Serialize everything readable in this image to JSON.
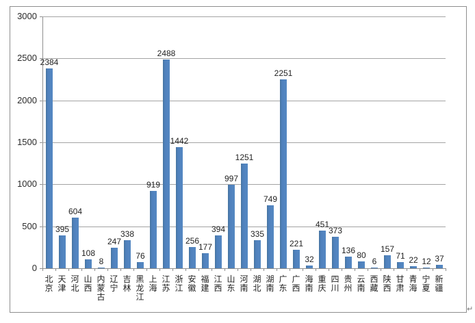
{
  "chart_data": {
    "type": "bar",
    "title": "",
    "xlabel": "",
    "ylabel": "",
    "categories": [
      "北京",
      "天津",
      "河北",
      "山西",
      "内蒙古",
      "辽宁",
      "吉林",
      "黑龙江",
      "上海",
      "江苏",
      "浙江",
      "安徽",
      "福建",
      "江西",
      "山东",
      "河南",
      "湖北",
      "湖南",
      "广东",
      "广西",
      "海南",
      "重庆",
      "四川",
      "贵州",
      "云南",
      "西藏",
      "陕西",
      "甘肃",
      "青海",
      "宁夏",
      "新疆"
    ],
    "values": [
      2384,
      395,
      604,
      108,
      8,
      247,
      338,
      76,
      919,
      2488,
      1442,
      256,
      177,
      394,
      997,
      1251,
      335,
      749,
      2251,
      221,
      32,
      451,
      373,
      136,
      80,
      6,
      157,
      71,
      22,
      12,
      37
    ],
    "data_labels_shown": true,
    "ylim": [
      0,
      3000
    ],
    "yticks": [
      0,
      500,
      1000,
      1500,
      2000,
      2500,
      3000
    ],
    "grid": true,
    "legend": "none",
    "colors": {
      "bar": "#4f81bd",
      "gridline": "#a3a3a3",
      "axis": "#8e8e8e",
      "text": "#1f1f1f",
      "frame_border": "#8e8e8e"
    }
  },
  "decorations": {
    "paragraph_mark": "↵"
  }
}
